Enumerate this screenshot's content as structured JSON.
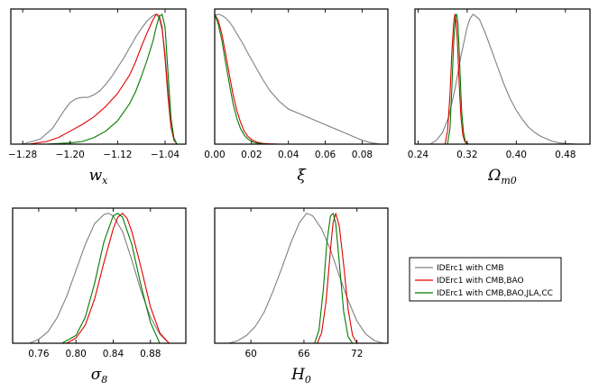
{
  "chart_data": [
    {
      "type": "line",
      "xlabel": "w",
      "xlabel_sub": "x",
      "xlim": [
        -1.3,
        -1.005
      ],
      "xticks": [
        -1.28,
        -1.2,
        -1.12,
        -1.04
      ],
      "xtick_labels": [
        "−1.28",
        "−1.20",
        "−1.12",
        "−1.04"
      ],
      "ylim": [
        0,
        1.04
      ],
      "series": [
        {
          "name": "IDErc1 with CMB",
          "color": "#808080",
          "x": [
            -1.28,
            -1.25,
            -1.23,
            -1.21,
            -1.2,
            -1.19,
            -1.18,
            -1.17,
            -1.16,
            -1.15,
            -1.14,
            -1.13,
            -1.12,
            -1.11,
            -1.1,
            -1.09,
            -1.08,
            -1.07,
            -1.06,
            -1.055,
            -1.05,
            -1.045,
            -1.04,
            -1.035,
            -1.03,
            -1.025,
            -1.02
          ],
          "y": [
            0.0,
            0.04,
            0.12,
            0.26,
            0.32,
            0.35,
            0.36,
            0.36,
            0.38,
            0.41,
            0.46,
            0.52,
            0.59,
            0.66,
            0.74,
            0.82,
            0.89,
            0.95,
            0.99,
            1.0,
            0.97,
            0.88,
            0.7,
            0.42,
            0.18,
            0.05,
            0.0
          ]
        },
        {
          "name": "IDErc1 with CMB,BAO",
          "color": "#e00000",
          "x": [
            -1.27,
            -1.24,
            -1.22,
            -1.2,
            -1.18,
            -1.16,
            -1.14,
            -1.12,
            -1.1,
            -1.09,
            -1.08,
            -1.07,
            -1.06,
            -1.055,
            -1.05,
            -1.045,
            -1.04,
            -1.035,
            -1.03,
            -1.025,
            -1.02
          ],
          "y": [
            0.0,
            0.02,
            0.05,
            0.1,
            0.15,
            0.21,
            0.29,
            0.39,
            0.53,
            0.63,
            0.75,
            0.86,
            0.96,
            1.0,
            0.99,
            0.9,
            0.66,
            0.36,
            0.13,
            0.03,
            0.0
          ]
        },
        {
          "name": "IDErc1 with CMB,BAO,JLA,CC",
          "color": "#007a00",
          "x": [
            -1.24,
            -1.2,
            -1.18,
            -1.16,
            -1.14,
            -1.12,
            -1.1,
            -1.09,
            -1.08,
            -1.07,
            -1.06,
            -1.055,
            -1.05,
            -1.045,
            -1.04,
            -1.035,
            -1.03,
            -1.025,
            -1.02
          ],
          "y": [
            0.0,
            0.01,
            0.02,
            0.05,
            0.1,
            0.18,
            0.31,
            0.4,
            0.52,
            0.65,
            0.8,
            0.9,
            0.98,
            1.0,
            0.9,
            0.55,
            0.2,
            0.04,
            0.0
          ]
        }
      ]
    },
    {
      "type": "line",
      "xlabel": "ξ",
      "xlabel_sub": "",
      "xlim": [
        0.0,
        0.094
      ],
      "xticks": [
        0.0,
        0.02,
        0.04,
        0.06,
        0.08
      ],
      "xtick_labels": [
        "0.00",
        "0.02",
        "0.04",
        "0.06",
        "0.08"
      ],
      "ylim": [
        0,
        1.04
      ],
      "series": [
        {
          "name": "IDErc1 with CMB",
          "color": "#808080",
          "x": [
            0.0,
            0.002,
            0.004,
            0.006,
            0.008,
            0.01,
            0.012,
            0.015,
            0.018,
            0.022,
            0.026,
            0.03,
            0.035,
            0.04,
            0.045,
            0.05,
            0.055,
            0.06,
            0.065,
            0.07,
            0.075,
            0.08,
            0.085,
            0.09
          ],
          "y": [
            0.99,
            1.0,
            0.99,
            0.97,
            0.94,
            0.9,
            0.85,
            0.78,
            0.7,
            0.6,
            0.5,
            0.41,
            0.33,
            0.27,
            0.24,
            0.21,
            0.18,
            0.15,
            0.12,
            0.09,
            0.06,
            0.03,
            0.01,
            0.0
          ]
        },
        {
          "name": "IDErc1 with CMB,BAO",
          "color": "#e00000",
          "x": [
            0.0,
            0.002,
            0.004,
            0.006,
            0.008,
            0.01,
            0.012,
            0.014,
            0.016,
            0.018,
            0.02,
            0.023,
            0.026,
            0.03,
            0.035
          ],
          "y": [
            1.0,
            0.95,
            0.84,
            0.69,
            0.53,
            0.38,
            0.26,
            0.17,
            0.1,
            0.06,
            0.035,
            0.015,
            0.006,
            0.002,
            0.0
          ]
        },
        {
          "name": "IDErc1 with CMB,BAO,JLA,CC",
          "color": "#007a00",
          "x": [
            0.0,
            0.002,
            0.004,
            0.006,
            0.008,
            0.01,
            0.012,
            0.014,
            0.016,
            0.018,
            0.02,
            0.023,
            0.026,
            0.03
          ],
          "y": [
            1.0,
            0.92,
            0.79,
            0.62,
            0.46,
            0.31,
            0.2,
            0.12,
            0.07,
            0.04,
            0.02,
            0.008,
            0.002,
            0.0
          ]
        }
      ]
    },
    {
      "type": "line",
      "xlabel": "Ω",
      "xlabel_sub": "m0",
      "xlim": [
        0.235,
        0.52
      ],
      "xticks": [
        0.24,
        0.32,
        0.4,
        0.48
      ],
      "xtick_labels": [
        "0.24",
        "0.32",
        "0.40",
        "0.48"
      ],
      "ylim": [
        0,
        1.04
      ],
      "series": [
        {
          "name": "IDErc1 with CMB",
          "color": "#808080",
          "x": [
            0.26,
            0.27,
            0.28,
            0.29,
            0.3,
            0.31,
            0.32,
            0.325,
            0.33,
            0.34,
            0.35,
            0.36,
            0.37,
            0.38,
            0.39,
            0.4,
            0.41,
            0.42,
            0.43,
            0.44,
            0.45,
            0.46,
            0.47,
            0.48,
            0.49,
            0.5
          ],
          "y": [
            0.0,
            0.03,
            0.09,
            0.21,
            0.42,
            0.68,
            0.9,
            0.97,
            1.0,
            0.96,
            0.85,
            0.72,
            0.59,
            0.46,
            0.35,
            0.26,
            0.19,
            0.13,
            0.09,
            0.06,
            0.04,
            0.02,
            0.01,
            0.005,
            0.002,
            0.0
          ]
        },
        {
          "name": "IDErc1 with CMB,BAO",
          "color": "#e00000",
          "x": [
            0.284,
            0.288,
            0.292,
            0.295,
            0.298,
            0.3,
            0.302,
            0.304,
            0.306,
            0.308,
            0.31,
            0.313,
            0.316,
            0.32
          ],
          "y": [
            0.0,
            0.1,
            0.38,
            0.7,
            0.93,
            1.0,
            0.95,
            0.8,
            0.58,
            0.37,
            0.2,
            0.07,
            0.02,
            0.0
          ]
        },
        {
          "name": "IDErc1 with CMB,BAO,JLA,CC",
          "color": "#007a00",
          "x": [
            0.288,
            0.292,
            0.295,
            0.298,
            0.301,
            0.303,
            0.305,
            0.307,
            0.309,
            0.311,
            0.314,
            0.317,
            0.322
          ],
          "y": [
            0.0,
            0.12,
            0.42,
            0.78,
            0.98,
            1.0,
            0.92,
            0.72,
            0.48,
            0.26,
            0.09,
            0.02,
            0.0
          ]
        }
      ]
    },
    {
      "type": "line",
      "xlabel": "σ",
      "xlabel_sub": "8",
      "xlim": [
        0.732,
        0.918
      ],
      "xticks": [
        0.76,
        0.8,
        0.84,
        0.88
      ],
      "xtick_labels": [
        "0.76",
        "0.80",
        "0.84",
        "0.88"
      ],
      "ylim": [
        0,
        1.04
      ],
      "series": [
        {
          "name": "IDErc1 with CMB",
          "color": "#808080",
          "x": [
            0.75,
            0.76,
            0.77,
            0.78,
            0.79,
            0.8,
            0.81,
            0.82,
            0.83,
            0.835,
            0.84,
            0.85,
            0.86,
            0.87,
            0.88,
            0.89,
            0.9
          ],
          "y": [
            0.0,
            0.03,
            0.09,
            0.2,
            0.36,
            0.56,
            0.76,
            0.92,
            0.99,
            1.0,
            0.98,
            0.86,
            0.64,
            0.4,
            0.2,
            0.07,
            0.0
          ]
        },
        {
          "name": "IDErc1 with CMB,BAO",
          "color": "#e00000",
          "x": [
            0.79,
            0.8,
            0.81,
            0.82,
            0.83,
            0.84,
            0.845,
            0.85,
            0.855,
            0.86,
            0.87,
            0.88,
            0.89,
            0.9
          ],
          "y": [
            0.0,
            0.04,
            0.14,
            0.34,
            0.62,
            0.88,
            0.97,
            1.0,
            0.96,
            0.86,
            0.58,
            0.28,
            0.08,
            0.0
          ]
        },
        {
          "name": "IDErc1 with CMB,BAO,JLA,CC",
          "color": "#007a00",
          "x": [
            0.785,
            0.8,
            0.81,
            0.82,
            0.83,
            0.84,
            0.845,
            0.85,
            0.86,
            0.87,
            0.88,
            0.89
          ],
          "y": [
            0.0,
            0.06,
            0.2,
            0.46,
            0.78,
            0.98,
            1.0,
            0.97,
            0.76,
            0.44,
            0.16,
            0.0
          ]
        }
      ]
    },
    {
      "type": "line",
      "xlabel": "H",
      "xlabel_sub": "0",
      "xlim": [
        55.9,
        75.5
      ],
      "xticks": [
        60,
        66,
        72
      ],
      "xtick_labels": [
        "60",
        "66",
        "72"
      ],
      "ylim": [
        0,
        1.04
      ],
      "series": [
        {
          "name": "IDErc1 with CMB",
          "color": "#808080",
          "x": [
            57.5,
            58.5,
            59.5,
            60.5,
            61.5,
            62.5,
            63.5,
            64.5,
            65.5,
            66.3,
            67,
            68,
            69,
            70,
            71,
            72,
            73,
            74,
            75
          ],
          "y": [
            0.0,
            0.02,
            0.06,
            0.13,
            0.24,
            0.4,
            0.58,
            0.77,
            0.93,
            1.0,
            0.98,
            0.88,
            0.72,
            0.52,
            0.33,
            0.17,
            0.07,
            0.02,
            0.0
          ]
        },
        {
          "name": "IDErc1 with CMB,BAO",
          "color": "#e00000",
          "x": [
            67.5,
            68,
            68.5,
            69,
            69.3,
            69.6,
            70,
            70.5,
            71,
            71.5,
            72
          ],
          "y": [
            0.0,
            0.08,
            0.32,
            0.72,
            0.93,
            1.0,
            0.9,
            0.6,
            0.26,
            0.06,
            0.0
          ]
        },
        {
          "name": "IDErc1 with CMB,BAO,JLA,CC",
          "color": "#007a00",
          "x": [
            67.2,
            67.7,
            68.2,
            68.6,
            69,
            69.3,
            69.6,
            70,
            70.5,
            71,
            71.5
          ],
          "y": [
            0.0,
            0.1,
            0.42,
            0.78,
            0.98,
            1.0,
            0.92,
            0.62,
            0.24,
            0.05,
            0.0
          ]
        }
      ]
    }
  ],
  "legend": {
    "items": [
      {
        "label": "IDErc1 with CMB",
        "color": "#808080"
      },
      {
        "label": "IDErc1 with CMB,BAO",
        "color": "#e00000"
      },
      {
        "label": "IDErc1 with CMB,BAO,JLA,CC",
        "color": "#007a00"
      }
    ]
  }
}
